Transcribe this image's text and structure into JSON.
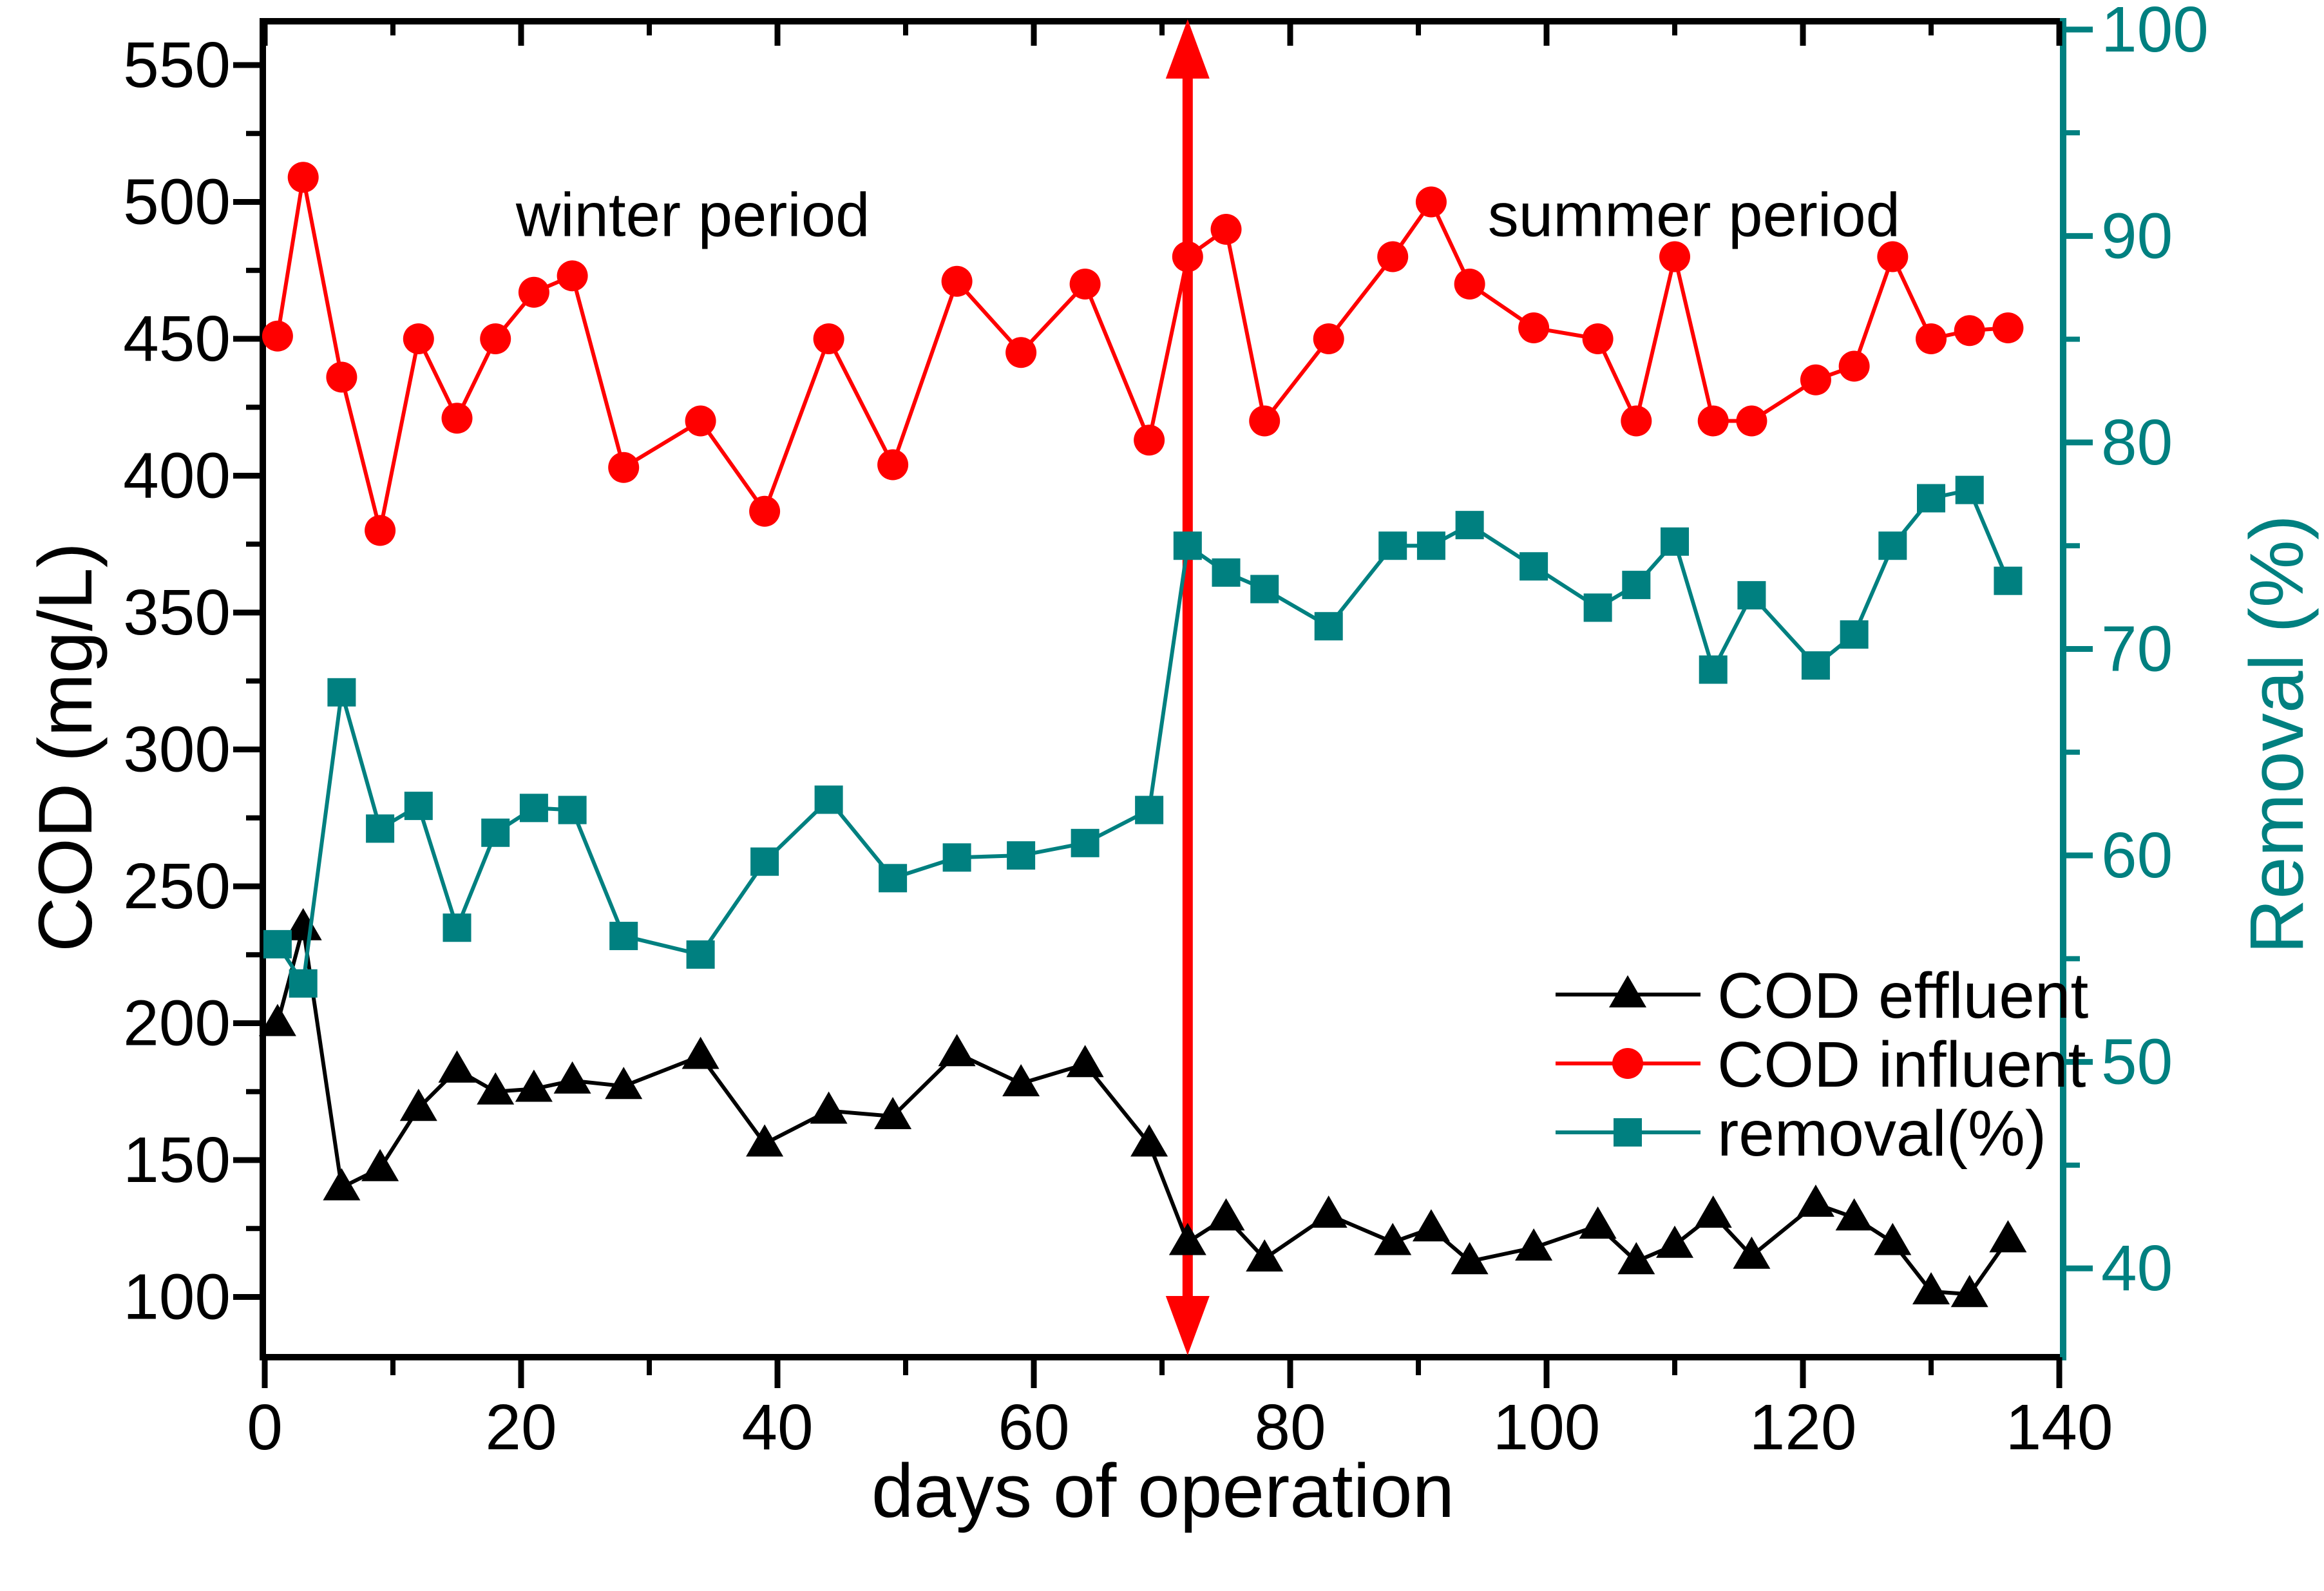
{
  "chart_data": {
    "type": "line",
    "title": "",
    "xlabel": "days of operation",
    "ylabel_left": "COD (mg/L)",
    "ylabel_right": "Removal (%)",
    "background": "#ffffff",
    "axis_color_left": "#000000",
    "axis_color_right": "#008080",
    "x_axis": {
      "min": 0,
      "max": 140.3,
      "major_ticks": [
        0,
        20,
        40,
        60,
        80,
        100,
        120,
        140
      ],
      "minor_ticks": [
        10,
        30,
        50,
        70,
        90,
        110,
        130
      ]
    },
    "left_axis": {
      "min": 78,
      "max": 566,
      "major_ticks": [
        100,
        150,
        200,
        250,
        300,
        350,
        400,
        450,
        500,
        550
      ],
      "minor_ticks": [
        125,
        175,
        225,
        275,
        325,
        375,
        425,
        475,
        525
      ]
    },
    "right_axis": {
      "min": 35.7,
      "max": 100.4,
      "major_ticks": [
        40,
        50,
        60,
        70,
        80,
        90,
        100
      ],
      "minor_ticks": [
        45,
        55,
        65,
        75,
        85,
        95
      ]
    },
    "x_days": [
      1,
      3,
      6,
      9,
      12,
      15,
      18,
      21,
      24,
      28,
      34,
      39,
      44,
      49,
      54,
      59,
      64,
      69,
      72,
      75,
      78,
      83,
      88,
      91,
      94,
      99,
      104,
      107,
      110,
      113,
      116,
      121,
      124,
      127,
      130,
      133,
      136
    ],
    "series": [
      {
        "name": "COD effluent",
        "axis": "left",
        "color": "#000000",
        "marker": "triangle",
        "values": [
          200,
          235,
          140,
          147,
          169,
          183,
          175,
          176,
          179,
          177,
          188,
          156,
          168,
          166,
          189,
          178,
          185,
          156,
          120,
          129,
          114,
          130,
          120,
          125,
          113,
          118,
          126,
          113,
          119,
          130,
          115,
          134,
          129,
          120,
          102,
          101,
          121
        ]
      },
      {
        "name": "COD influent",
        "axis": "left",
        "color": "#ff0000",
        "marker": "circle",
        "values": [
          451,
          509,
          436,
          380,
          450,
          421,
          450,
          467,
          473,
          403,
          420,
          387,
          450,
          404,
          471,
          445,
          470,
          413,
          480,
          490,
          420,
          450,
          480,
          500,
          470,
          454,
          450,
          420,
          480,
          420,
          420,
          435,
          440,
          480,
          450,
          453,
          454
        ]
      },
      {
        "name": "removal(%)",
        "axis": "right",
        "color": "#008080",
        "marker": "square",
        "values": [
          55.7,
          53.8,
          67.9,
          61.3,
          62.4,
          56.5,
          61.1,
          62.3,
          62.2,
          56.1,
          55.2,
          59.7,
          62.7,
          58.9,
          59.9,
          60.0,
          60.6,
          62.2,
          75.0,
          73.7,
          72.9,
          71.1,
          75.0,
          75.0,
          76.0,
          74.0,
          72.0,
          73.1,
          75.2,
          69.0,
          72.6,
          69.2,
          70.7,
          75.0,
          77.3,
          77.7,
          73.3
        ]
      }
    ],
    "annotations": [
      {
        "text": "winter period",
        "x_day": 33.4,
        "y_cod": 496
      },
      {
        "text": "summer period",
        "x_day": 111.5,
        "y_cod": 496
      }
    ],
    "arrow": {
      "x_day": 72,
      "color": "#ff0000"
    },
    "legend": {
      "entries": [
        "COD effluent",
        "COD influent",
        "removal(%)"
      ],
      "position": "center-right"
    }
  }
}
